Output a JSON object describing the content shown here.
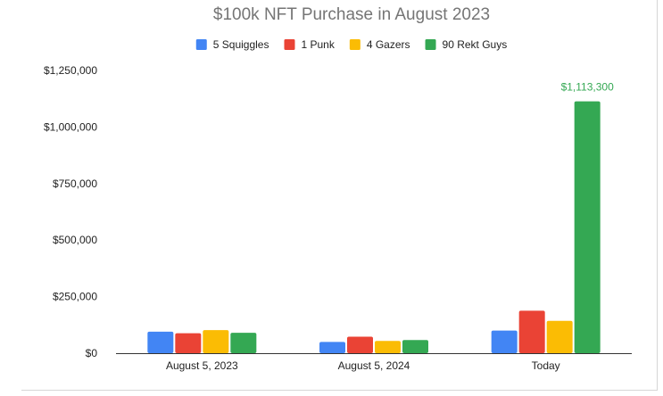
{
  "chart_data": {
    "type": "bar",
    "title": "$100k NFT Purchase in August 2023",
    "xlabel": "",
    "ylabel": "",
    "categories": [
      "August 5, 2023",
      "August 5, 2024",
      "Today"
    ],
    "series": [
      {
        "name": "5 Squiggles",
        "color": "#4285F4",
        "values": [
          95000,
          50000,
          100000
        ]
      },
      {
        "name": "1 Punk",
        "color": "#EA4335",
        "values": [
          88000,
          73000,
          188000
        ]
      },
      {
        "name": "4 Gazers",
        "color": "#FBBC04",
        "values": [
          102000,
          54000,
          143000
        ]
      },
      {
        "name": "90 Rekt Guys",
        "color": "#34A853",
        "values": [
          90000,
          58000,
          1113300
        ]
      }
    ],
    "ylim": [
      0,
      1250000
    ],
    "yticks": [
      0,
      250000,
      500000,
      750000,
      1000000,
      1250000
    ],
    "ytick_labels": [
      "$0",
      "$250,000",
      "$500,000",
      "$750,000",
      "$1,000,000",
      "$1,250,000"
    ],
    "annotations": [
      {
        "series": "90 Rekt Guys",
        "category": "Today",
        "text": "$1,113,300",
        "color": "#34A853"
      }
    ],
    "legend_position": "top-center",
    "grid": false
  }
}
